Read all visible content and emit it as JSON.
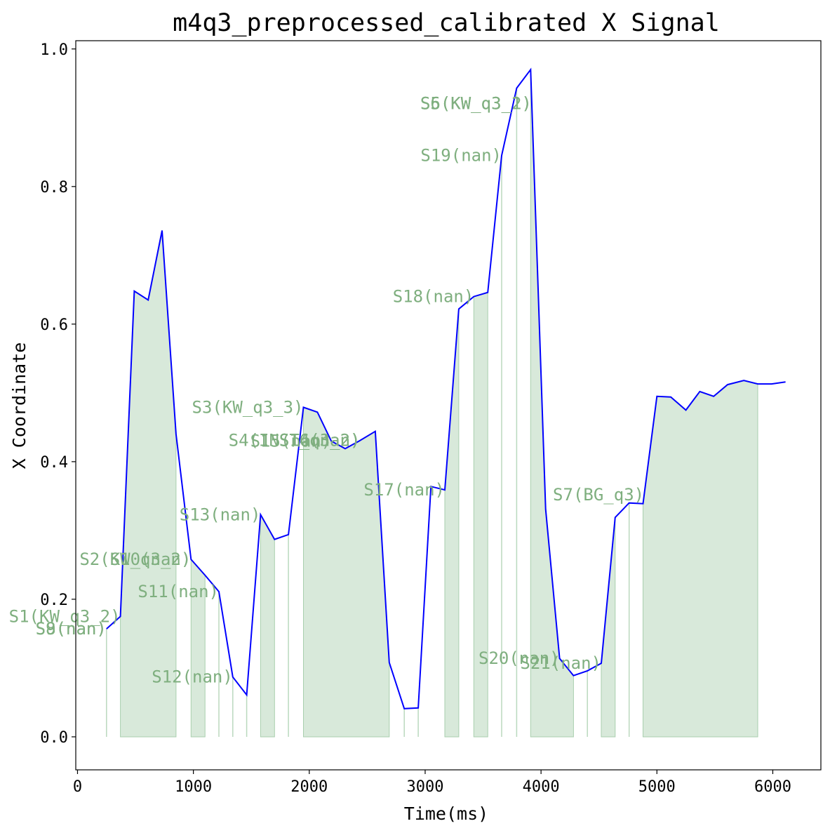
{
  "chart_data": {
    "type": "line",
    "title": "m4q3_preprocessed_calibrated X Signal",
    "xlabel": "Time(ms)",
    "ylabel": "X Coordinate",
    "xlim": [
      -15,
      6415
    ],
    "ylim": [
      -0.048,
      1.012
    ],
    "xticks": [
      0,
      1000,
      2000,
      3000,
      4000,
      5000,
      6000
    ],
    "yticks": [
      0.0,
      0.2,
      0.4,
      0.6,
      0.8,
      1.0
    ],
    "xtick_labels": [
      "0",
      "1000",
      "2000",
      "3000",
      "4000",
      "5000",
      "6000"
    ],
    "ytick_labels": [
      "0.0",
      "0.2",
      "0.4",
      "0.6",
      "0.8",
      "1.0"
    ],
    "grid": false,
    "line_color": "#0000ff",
    "fill_color": "#a9cfae",
    "label_color": "#7faf7f",
    "series": [
      {
        "x": [
          250,
          370,
          490,
          610,
          730,
          850,
          980,
          1100,
          1220,
          1340,
          1460,
          1580,
          1700,
          1820,
          1950,
          2070,
          2190,
          2310,
          2430,
          2570,
          2690,
          2820,
          2940,
          3050,
          3170,
          3290,
          3420,
          3540,
          3660,
          3790,
          3910,
          4040,
          4160,
          4280,
          4400,
          4520,
          4640,
          4760,
          4880,
          5000,
          5120,
          5250,
          5370,
          5490,
          5610,
          5750,
          5870,
          5990,
          6110
        ],
        "values": [
          0.157,
          0.175,
          0.648,
          0.635,
          0.736,
          0.44,
          0.258,
          0.235,
          0.211,
          0.087,
          0.061,
          0.323,
          0.287,
          0.294,
          0.479,
          0.472,
          0.43,
          0.419,
          0.43,
          0.444,
          0.108,
          0.041,
          0.042,
          0.364,
          0.359,
          0.622,
          0.64,
          0.646,
          0.845,
          0.943,
          0.97,
          0.331,
          0.114,
          0.089,
          0.096,
          0.107,
          0.319,
          0.34,
          0.339,
          0.495,
          0.494,
          0.475,
          0.502,
          0.495,
          0.512,
          0.518,
          0.513,
          0.513,
          0.516
        ]
      }
    ],
    "segments": [
      {
        "label": "S1(KW_q3_2)",
        "start": 370,
        "end": 850
      },
      {
        "label": "S2(KW_q3_2)",
        "start": 980,
        "end": 1100
      },
      {
        "label": "S3(KW_q3_3)",
        "start": 1950,
        "end": 2690
      },
      {
        "label": "S4(INST_q3_2)",
        "start": 2440,
        "end": 2680
      },
      {
        "label": "S5(KW_q3_1)",
        "start": 3920,
        "end": 4030
      },
      {
        "label": "S6(KW_q3_2)",
        "start": 3920,
        "end": 4280
      },
      {
        "label": "S7(BG_q3)",
        "start": 4890,
        "end": 5870
      },
      {
        "label": "S8(nan)",
        "start": 250,
        "end": 250
      },
      {
        "label": "S9(nan)",
        "start": 250,
        "end": 250
      },
      {
        "label": "S10(nan)",
        "start": 980,
        "end": 1100
      },
      {
        "label": "S11(nan)",
        "start": 1220,
        "end": 1220
      },
      {
        "label": "S12(nan)",
        "start": 1340,
        "end": 1460
      },
      {
        "label": "S13(nan)",
        "start": 1580,
        "end": 1700
      },
      {
        "label": "S14(nan)",
        "start": 2440,
        "end": 2690
      },
      {
        "label": "S15(nan)",
        "start": 2190,
        "end": 2310
      },
      {
        "label": "S16(nan)",
        "start": 2440,
        "end": 2570
      },
      {
        "label": "S17(nan)",
        "start": 3170,
        "end": 3290
      },
      {
        "label": "S18(nan)",
        "start": 3420,
        "end": 3540
      },
      {
        "label": "S19(nan)",
        "start": 3660,
        "end": 3790
      },
      {
        "label": "S20(nan)",
        "start": 4160,
        "end": 4280
      },
      {
        "label": "S21(nan)",
        "start": 4520,
        "end": 4640
      }
    ],
    "bands": [
      [
        370,
        850
      ],
      [
        980,
        1100
      ],
      [
        1580,
        1700
      ],
      [
        1950,
        2690
      ],
      [
        3170,
        3290
      ],
      [
        3420,
        3540
      ],
      [
        3910,
        4280
      ],
      [
        4520,
        4640
      ],
      [
        4880,
        5870
      ]
    ],
    "vlines": [
      250,
      1220,
      1340,
      1460,
      1820,
      2820,
      2940,
      3660,
      3790,
      4400,
      4760
    ]
  }
}
